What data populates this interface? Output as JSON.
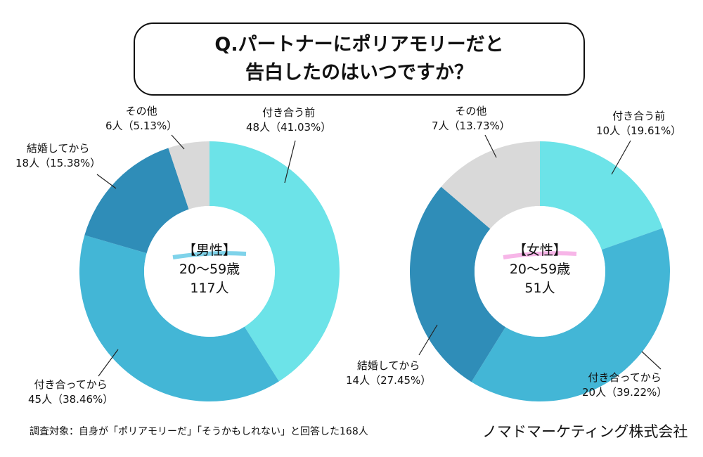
{
  "title": {
    "line1": "Q.パートナーにポリアモリーだと",
    "line2": "告白したのはいつですか？"
  },
  "colors": {
    "before": "#6ce3e8",
    "after": "#43b6d6",
    "married": "#2f8db8",
    "other": "#d9d9d9",
    "male_mark": "#7fd3ea",
    "female_mark": "#f7b6e8"
  },
  "chart_data": [
    {
      "type": "pie",
      "title": "【男性】",
      "subtitle": "20〜59歳",
      "total": "117人",
      "categories": [
        "付き合う前",
        "付き合ってから",
        "結婚してから",
        "その他"
      ],
      "values": [
        48,
        45,
        18,
        6
      ],
      "labels": [
        "48人（41.03%）",
        "45人（38.46%）",
        "18人（15.38%）",
        "6人（5.13%）"
      ]
    },
    {
      "type": "pie",
      "title": "【女性】",
      "subtitle": "20〜59歳",
      "total": "51人",
      "categories": [
        "付き合う前",
        "付き合ってから",
        "結婚してから",
        "その他"
      ],
      "values": [
        10,
        20,
        14,
        7
      ],
      "labels": [
        "10人（19.61%）",
        "20人（39.22%）",
        "14人（27.45%）",
        "7人（13.73%）"
      ]
    }
  ],
  "footer": {
    "note": "調査対象：自身が「ポリアモリーだ」「そうかもしれない」と回答した168人",
    "brand": "ノマドマーケティング株式会社"
  }
}
